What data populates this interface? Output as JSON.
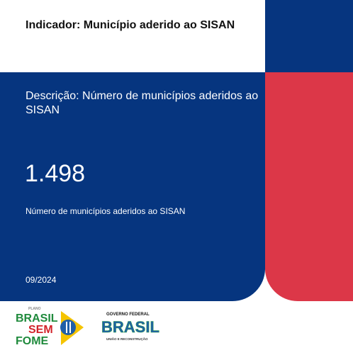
{
  "card": {
    "title": "Indicador: Município aderido ao SISAN",
    "description": "Descrição: Número de municípios aderidos ao SISAN",
    "value": "1.498",
    "value_caption": "Número de municípios aderidos ao SISAN",
    "date": "09/2024"
  },
  "footer": {
    "logo_left": {
      "small": "PLANO",
      "line1": "BRASIL",
      "line2": "SEM",
      "line3": "FOME"
    },
    "logo_right": {
      "top": "GOVERNO FEDERAL",
      "name": "BRASIL",
      "tagline": "UNIÃO E RECONSTRUÇÃO"
    }
  }
}
